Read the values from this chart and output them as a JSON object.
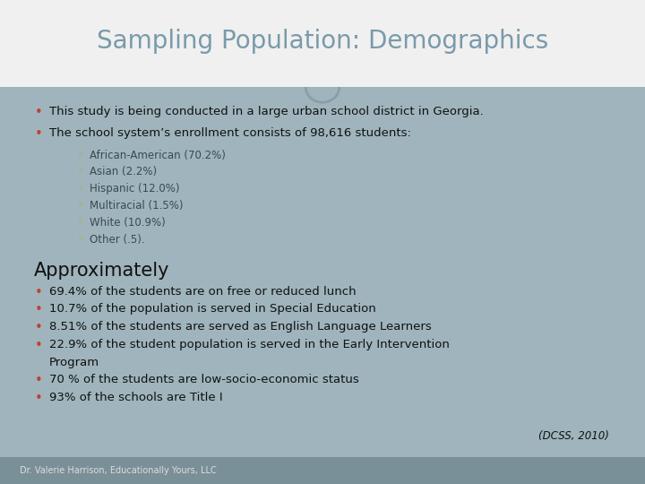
{
  "title": "Sampling Population: Demographics",
  "title_color": "#7a9aaa",
  "bg_color": "#9fb4bc",
  "header_bg": "#f0f0f0",
  "footer_bg": "#7a9098",
  "footer_text": "Dr. Valerie Harrison, Educationally Yours, LLC",
  "bullet_color_main": "#c04030",
  "bullet_color_sub": "#c8a840",
  "main_bullets": [
    "This study is being conducted in a large urban school district in Georgia.",
    "The school system’s enrollment consists of 98,616 students:"
  ],
  "sub_bullets": [
    "African-American (70.2%)",
    "Asian (2.2%)",
    "Hispanic (12.0%)",
    "Multiracial (1.5%)",
    "White (10.9%)",
    "Other (.5)."
  ],
  "approx_header": "Approximately",
  "approx_bullets": [
    "69.4% of the students are on free or reduced lunch",
    "10.7% of the population is served in Special Education",
    "8.51% of the students are served as English Language Learners",
    "22.9% of the student population is served in the Early Intervention Program",
    "70 % of the students are low-socio-economic status",
    "93% of the schools are Title I"
  ],
  "citation": "(DCSS, 2010)",
  "text_color_dark": "#111111",
  "text_color_sub": "#3a4a50",
  "approx_header_color": "#111111",
  "approx_bullet_color": "#111111",
  "line_color": "#8a9ea8",
  "ellipse_color": "#8a9ea8"
}
